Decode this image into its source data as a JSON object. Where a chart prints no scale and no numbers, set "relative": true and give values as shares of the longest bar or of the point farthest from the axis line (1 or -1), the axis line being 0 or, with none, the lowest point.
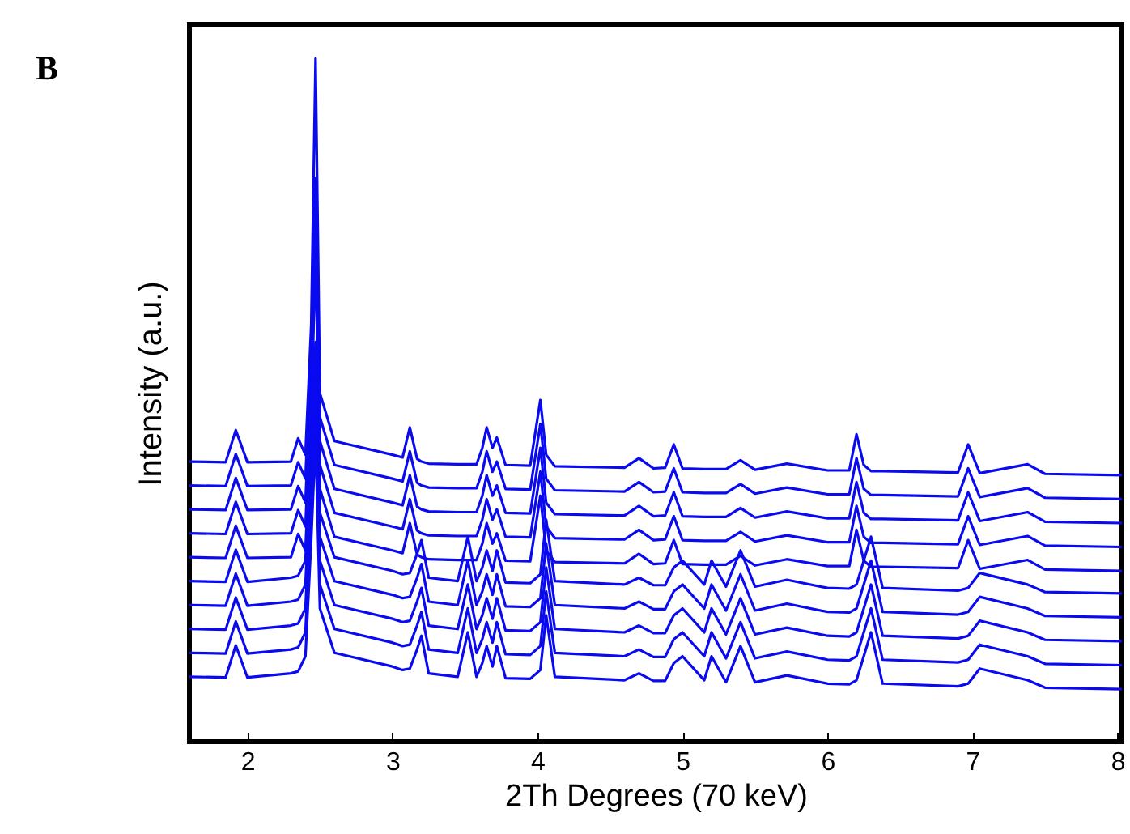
{
  "chart_data": {
    "type": "line",
    "relative": true,
    "xlabel": "2Th Degrees (70 keV)",
    "ylabel": "Intensity (a.u.)",
    "annotations": [
      "B"
    ],
    "xlim": [
      1.6,
      8.03
    ],
    "xticks": [
      2,
      3,
      4,
      5,
      6,
      7,
      8
    ],
    "x": [
      1.6,
      1.85,
      1.92,
      2.0,
      2.3,
      2.35,
      2.4,
      2.44,
      2.47,
      2.5,
      2.6,
      3.0,
      3.07,
      3.12,
      3.17,
      3.2,
      3.25,
      3.45,
      3.52,
      3.58,
      3.62,
      3.65,
      3.69,
      3.72,
      3.78,
      3.95,
      4.02,
      4.06,
      4.12,
      4.6,
      4.7,
      4.8,
      4.88,
      4.94,
      5.0,
      5.15,
      5.2,
      5.3,
      5.4,
      5.5,
      5.72,
      6.0,
      6.15,
      6.2,
      6.25,
      6.3,
      6.38,
      6.9,
      6.97,
      7.05,
      7.38,
      7.5,
      8.03
    ],
    "series": [
      {
        "color": "#0a0af0",
        "values": [
          0.41,
          0.409,
          0.456,
          0.409,
          0.41,
          0.444,
          0.42,
          0.61,
          1.0,
          0.51,
          0.44,
          0.42,
          0.416,
          0.46,
          0.414,
          0.41,
          0.407,
          0.406,
          0.406,
          0.406,
          0.43,
          0.46,
          0.43,
          0.445,
          0.405,
          0.404,
          0.5,
          0.42,
          0.403,
          0.401,
          0.415,
          0.4,
          0.401,
          0.435,
          0.4,
          0.399,
          0.399,
          0.399,
          0.412,
          0.398,
          0.407,
          0.397,
          0.397,
          0.45,
          0.405,
          0.396,
          0.396,
          0.394,
          0.435,
          0.393,
          0.406,
          0.392,
          0.39
        ]
      },
      {
        "color": "#0a0af0",
        "values": [
          0.375,
          0.374,
          0.421,
          0.374,
          0.375,
          0.409,
          0.385,
          0.575,
          0.825,
          0.475,
          0.405,
          0.385,
          0.381,
          0.425,
          0.379,
          0.375,
          0.372,
          0.371,
          0.371,
          0.371,
          0.395,
          0.425,
          0.395,
          0.41,
          0.37,
          0.369,
          0.465,
          0.385,
          0.368,
          0.366,
          0.38,
          0.365,
          0.366,
          0.4,
          0.365,
          0.364,
          0.364,
          0.364,
          0.377,
          0.363,
          0.372,
          0.362,
          0.362,
          0.415,
          0.37,
          0.361,
          0.361,
          0.359,
          0.4,
          0.358,
          0.371,
          0.357,
          0.355
        ]
      },
      {
        "color": "#0a0af0",
        "values": [
          0.34,
          0.339,
          0.386,
          0.339,
          0.34,
          0.374,
          0.35,
          0.54,
          0.79,
          0.44,
          0.37,
          0.35,
          0.346,
          0.39,
          0.344,
          0.34,
          0.337,
          0.336,
          0.336,
          0.336,
          0.36,
          0.39,
          0.36,
          0.375,
          0.335,
          0.334,
          0.43,
          0.35,
          0.333,
          0.331,
          0.345,
          0.33,
          0.331,
          0.365,
          0.33,
          0.329,
          0.329,
          0.329,
          0.342,
          0.328,
          0.337,
          0.327,
          0.327,
          0.38,
          0.335,
          0.326,
          0.326,
          0.324,
          0.365,
          0.323,
          0.336,
          0.322,
          0.32
        ]
      },
      {
        "color": "#0a0af0",
        "values": [
          0.305,
          0.304,
          0.351,
          0.304,
          0.305,
          0.339,
          0.315,
          0.505,
          0.755,
          0.405,
          0.335,
          0.315,
          0.311,
          0.355,
          0.309,
          0.305,
          0.302,
          0.301,
          0.301,
          0.301,
          0.325,
          0.355,
          0.325,
          0.34,
          0.3,
          0.299,
          0.395,
          0.315,
          0.298,
          0.296,
          0.31,
          0.295,
          0.296,
          0.33,
          0.295,
          0.294,
          0.294,
          0.294,
          0.307,
          0.293,
          0.302,
          0.292,
          0.292,
          0.345,
          0.3,
          0.291,
          0.291,
          0.289,
          0.33,
          0.288,
          0.301,
          0.287,
          0.285
        ]
      },
      {
        "color": "#0a0af0",
        "values": [
          0.27,
          0.269,
          0.316,
          0.269,
          0.27,
          0.304,
          0.28,
          0.47,
          0.72,
          0.37,
          0.3,
          0.28,
          0.276,
          0.32,
          0.274,
          0.27,
          0.267,
          0.266,
          0.266,
          0.266,
          0.29,
          0.32,
          0.29,
          0.305,
          0.265,
          0.264,
          0.36,
          0.28,
          0.263,
          0.261,
          0.275,
          0.26,
          0.261,
          0.295,
          0.26,
          0.259,
          0.259,
          0.259,
          0.272,
          0.258,
          0.267,
          0.257,
          0.257,
          0.31,
          0.265,
          0.256,
          0.256,
          0.254,
          0.295,
          0.253,
          0.266,
          0.252,
          0.25
        ]
      },
      {
        "color": "#0a0af0",
        "values": [
          0.235,
          0.234,
          0.281,
          0.234,
          0.24,
          0.243,
          0.265,
          0.435,
          0.585,
          0.335,
          0.27,
          0.25,
          0.245,
          0.247,
          0.275,
          0.295,
          0.24,
          0.235,
          0.3,
          0.235,
          0.255,
          0.28,
          0.25,
          0.28,
          0.233,
          0.232,
          0.245,
          0.325,
          0.235,
          0.23,
          0.24,
          0.229,
          0.229,
          0.255,
          0.265,
          0.23,
          0.265,
          0.227,
          0.28,
          0.227,
          0.237,
          0.225,
          0.224,
          0.23,
          0.265,
          0.3,
          0.225,
          0.221,
          0.225,
          0.247,
          0.23,
          0.219,
          0.217
        ]
      },
      {
        "color": "#0a0af0",
        "values": [
          0.2,
          0.199,
          0.246,
          0.199,
          0.205,
          0.208,
          0.23,
          0.4,
          0.55,
          0.3,
          0.235,
          0.215,
          0.21,
          0.212,
          0.24,
          0.26,
          0.205,
          0.2,
          0.265,
          0.2,
          0.22,
          0.245,
          0.215,
          0.245,
          0.198,
          0.197,
          0.21,
          0.29,
          0.2,
          0.195,
          0.205,
          0.194,
          0.194,
          0.22,
          0.23,
          0.195,
          0.23,
          0.192,
          0.245,
          0.192,
          0.202,
          0.19,
          0.189,
          0.195,
          0.23,
          0.265,
          0.19,
          0.186,
          0.19,
          0.212,
          0.195,
          0.184,
          0.182
        ]
      },
      {
        "color": "#0a0af0",
        "values": [
          0.165,
          0.164,
          0.211,
          0.164,
          0.17,
          0.173,
          0.195,
          0.365,
          0.515,
          0.265,
          0.2,
          0.18,
          0.175,
          0.177,
          0.205,
          0.225,
          0.17,
          0.165,
          0.23,
          0.165,
          0.185,
          0.21,
          0.18,
          0.21,
          0.163,
          0.162,
          0.175,
          0.255,
          0.165,
          0.16,
          0.17,
          0.159,
          0.159,
          0.185,
          0.195,
          0.16,
          0.195,
          0.157,
          0.21,
          0.157,
          0.167,
          0.155,
          0.154,
          0.16,
          0.195,
          0.23,
          0.155,
          0.151,
          0.155,
          0.177,
          0.16,
          0.149,
          0.147
        ]
      },
      {
        "color": "#0a0af0",
        "values": [
          0.13,
          0.129,
          0.176,
          0.129,
          0.135,
          0.138,
          0.16,
          0.33,
          0.48,
          0.23,
          0.165,
          0.145,
          0.14,
          0.142,
          0.17,
          0.19,
          0.135,
          0.13,
          0.195,
          0.13,
          0.15,
          0.175,
          0.145,
          0.175,
          0.128,
          0.127,
          0.14,
          0.22,
          0.13,
          0.125,
          0.135,
          0.124,
          0.124,
          0.15,
          0.16,
          0.125,
          0.16,
          0.122,
          0.175,
          0.122,
          0.132,
          0.12,
          0.119,
          0.125,
          0.16,
          0.195,
          0.12,
          0.116,
          0.12,
          0.142,
          0.125,
          0.114,
          0.112
        ]
      },
      {
        "color": "#0a0af0",
        "values": [
          0.095,
          0.094,
          0.141,
          0.094,
          0.1,
          0.103,
          0.125,
          0.295,
          0.445,
          0.195,
          0.13,
          0.11,
          0.105,
          0.107,
          0.135,
          0.155,
          0.1,
          0.095,
          0.16,
          0.095,
          0.115,
          0.14,
          0.11,
          0.14,
          0.093,
          0.092,
          0.105,
          0.185,
          0.095,
          0.09,
          0.1,
          0.089,
          0.089,
          0.115,
          0.125,
          0.09,
          0.125,
          0.087,
          0.14,
          0.087,
          0.097,
          0.085,
          0.084,
          0.09,
          0.125,
          0.16,
          0.085,
          0.081,
          0.085,
          0.107,
          0.09,
          0.079,
          0.077
        ]
      }
    ]
  }
}
